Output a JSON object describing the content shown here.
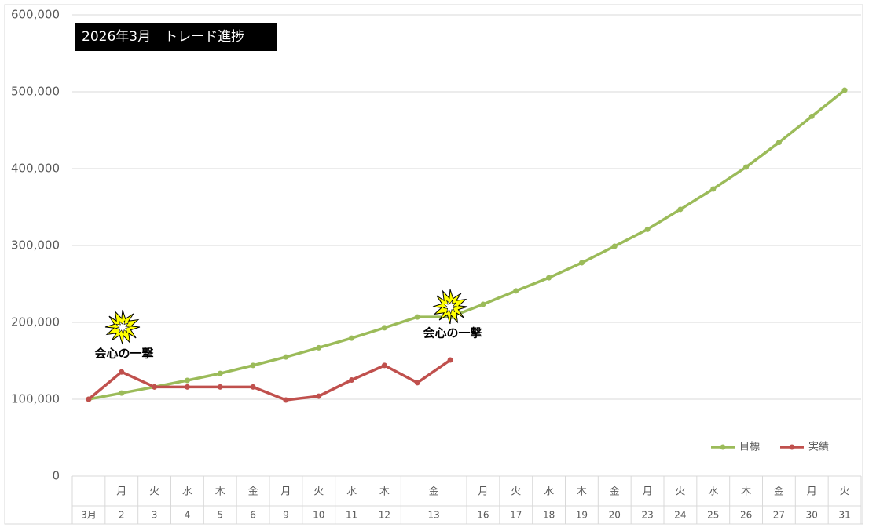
{
  "chart_data": {
    "type": "line",
    "title": "2026年3月　トレード進捗",
    "days": [
      "3月",
      "2",
      "3",
      "4",
      "5",
      "6",
      "9",
      "10",
      "11",
      "12",
      "13",
      null,
      "16",
      "17",
      "18",
      "19",
      "20",
      "23",
      "24",
      "25",
      "26",
      "27",
      "30",
      "31"
    ],
    "weekdays": [
      null,
      "月",
      "火",
      "水",
      "木",
      "金",
      "月",
      "火",
      "水",
      "木",
      "金",
      null,
      "月",
      "火",
      "水",
      "木",
      "金",
      "月",
      "火",
      "水",
      "木",
      "金",
      "月",
      "火"
    ],
    "series": [
      {
        "name": "目標",
        "color": "#9bbb59",
        "values": [
          100000,
          108000,
          116000,
          124500,
          133500,
          144000,
          155000,
          167000,
          179500,
          193000,
          207000,
          207000,
          223500,
          241000,
          258000,
          277500,
          299000,
          321000,
          347000,
          373500,
          402000,
          434000,
          468000,
          502000
        ]
      },
      {
        "name": "実績",
        "color": "#c0504d",
        "values": [
          100000,
          135500,
          116000,
          116000,
          116000,
          116000,
          99000,
          104000,
          125000,
          144000,
          121500,
          151000,
          null,
          null,
          null,
          null,
          null,
          null,
          null,
          null,
          null,
          null,
          null,
          null
        ]
      }
    ],
    "ylim": [
      0,
      600000
    ],
    "yticks": [
      0,
      {
        "value": 100000,
        "label": "100,000"
      },
      {
        "value": 200000,
        "label": "200,000"
      },
      {
        "value": 300000,
        "label": "300,000"
      },
      {
        "value": 400000,
        "label": "400,000"
      },
      {
        "value": 500000,
        "label": "500,000"
      },
      {
        "value": 600000,
        "label": "600,000"
      }
    ],
    "grid": true,
    "legend": "bottom-right",
    "annotations": [
      "会心の一撃",
      "会心の一撃"
    ]
  }
}
